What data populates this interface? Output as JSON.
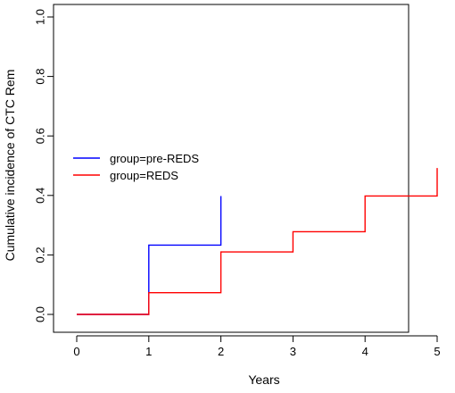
{
  "chart_data": {
    "type": "line",
    "subtype": "step",
    "title": "",
    "xlabel": "Years",
    "ylabel": "Cumulative incidence of CTC Rem",
    "xlim": [
      0,
      5
    ],
    "ylim": [
      0,
      1
    ],
    "x_ticks": [
      0,
      1,
      2,
      3,
      4,
      5
    ],
    "x_tick_labels": [
      "0",
      "1",
      "2",
      "3",
      "4",
      "5"
    ],
    "y_ticks": [
      0,
      0.2,
      0.4,
      0.6,
      0.8,
      1.0
    ],
    "y_tick_labels": [
      "0.0",
      "0.2",
      "0.4",
      "0.6",
      "0.8",
      "1.0"
    ],
    "grid": false,
    "legend_position": "left",
    "series": [
      {
        "name": "group=pre-REDS",
        "color": "#0000ff",
        "steps": [
          {
            "x": 0,
            "y": 0
          },
          {
            "x": 1,
            "y": 0.233
          },
          {
            "x": 2,
            "y": 0.398
          }
        ],
        "end_x": 2
      },
      {
        "name": "group=REDS",
        "color": "#ff0000",
        "steps": [
          {
            "x": 0,
            "y": 0
          },
          {
            "x": 1,
            "y": 0.073
          },
          {
            "x": 2,
            "y": 0.21
          },
          {
            "x": 3,
            "y": 0.278
          },
          {
            "x": 4,
            "y": 0.398
          },
          {
            "x": 5,
            "y": 0.492
          }
        ],
        "end_x": 5
      }
    ]
  }
}
